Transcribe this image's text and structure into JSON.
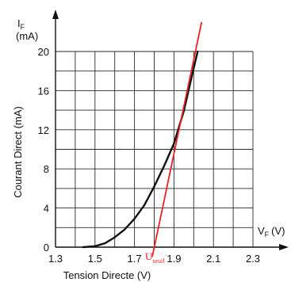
{
  "chart_data": {
    "type": "line",
    "title": "",
    "xlabel": "Tension Directe (V)",
    "ylabel": "Courant Direct  (mA)",
    "x_axis_symbol": "V",
    "x_axis_symbol_sub": "F",
    "x_axis_unit": "(V)",
    "y_axis_symbol": "I",
    "y_axis_symbol_sub": "F",
    "y_axis_unit": "(mA)",
    "xlim": [
      1.3,
      2.3
    ],
    "ylim": [
      0,
      20
    ],
    "x_ticks": [
      "1.3",
      "1.5",
      "1.7",
      "1.9",
      "2.1",
      "2.3"
    ],
    "y_ticks": [
      "0",
      "4",
      "8",
      "12",
      "16",
      "20"
    ],
    "grid": true,
    "grid_x_step": 0.1,
    "grid_y_step": 2,
    "series": [
      {
        "color": "#111111",
        "x": [
          1.44,
          1.5,
          1.55,
          1.6,
          1.65,
          1.7,
          1.75,
          1.8,
          1.85,
          1.9,
          1.95,
          2.0,
          2.02
        ],
        "y": [
          0,
          0.1,
          0.4,
          1.0,
          1.8,
          2.9,
          4.3,
          6.2,
          8.3,
          10.6,
          13.9,
          18.3,
          20
        ]
      }
    ],
    "annotations": [
      {
        "type": "tangent-line",
        "color": "#e8202a",
        "x": [
          1.79,
          2.04
        ],
        "y": [
          -1,
          23
        ]
      },
      {
        "type": "label",
        "color": "#e8202a",
        "text": "U",
        "sub": "seuil",
        "x": 1.79
      }
    ]
  }
}
